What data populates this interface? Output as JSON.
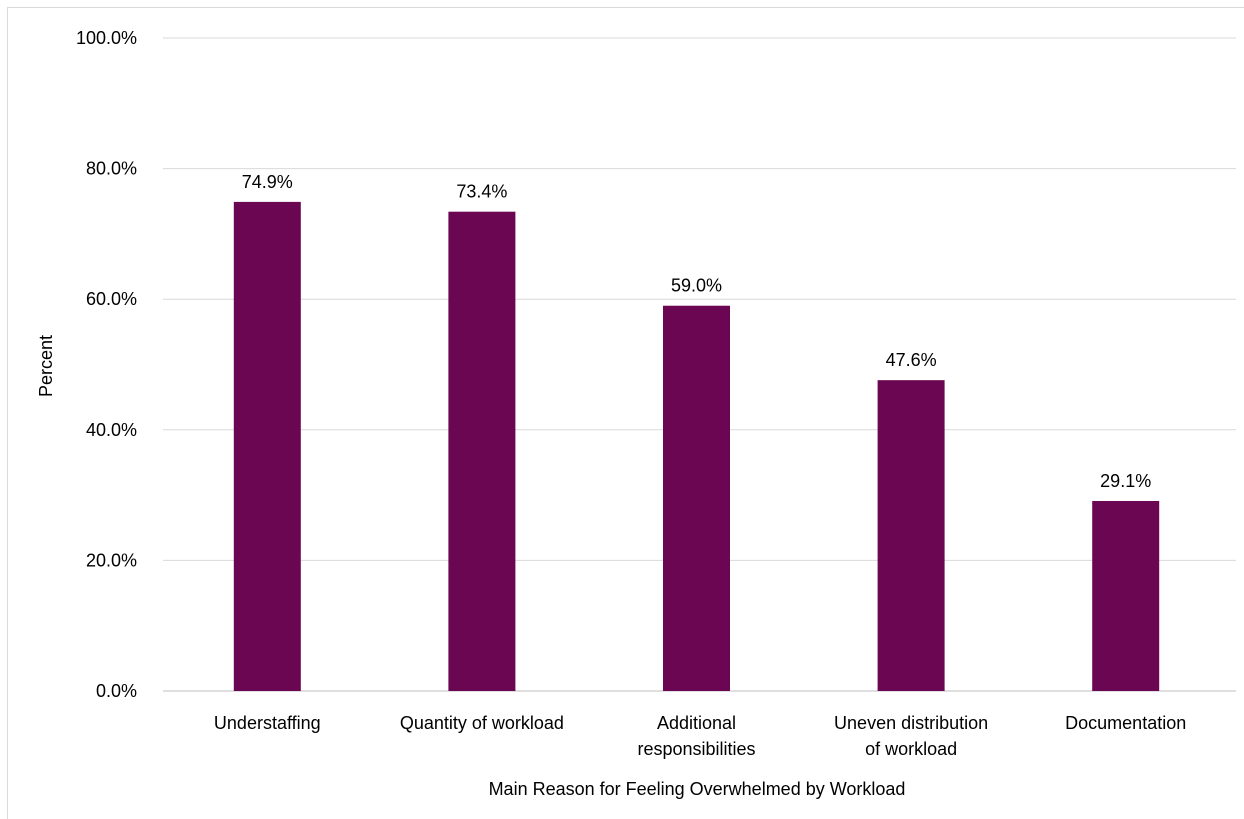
{
  "chart_data": {
    "type": "bar",
    "categories": [
      "Understaffing",
      "Quantity of workload",
      "Additional responsibilities",
      "Uneven distribution of workload",
      "Documentation"
    ],
    "category_lines": [
      [
        "Understaffing"
      ],
      [
        "Quantity of workload"
      ],
      [
        "Additional",
        "responsibilities"
      ],
      [
        "Uneven distribution",
        "of workload"
      ],
      [
        "Documentation"
      ]
    ],
    "values": [
      74.9,
      73.4,
      59.0,
      47.6,
      29.1
    ],
    "data_labels": [
      "74.9%",
      "73.4%",
      "59.0%",
      "47.6%",
      "29.1%"
    ],
    "xlabel": "Main Reason for Feeling Overwhelmed by Workload",
    "ylabel": "Percent",
    "ylim": [
      0,
      100
    ],
    "yticks": [
      0,
      20,
      40,
      60,
      80,
      100
    ],
    "ytick_labels": [
      "0.0%",
      "20.0%",
      "40.0%",
      "60.0%",
      "80.0%",
      "100.0%"
    ],
    "grid": true,
    "legend": "none",
    "colors": {
      "bar": "#6b0752",
      "grid": "#d9d9d9",
      "axis": "#bfbfbf"
    }
  }
}
